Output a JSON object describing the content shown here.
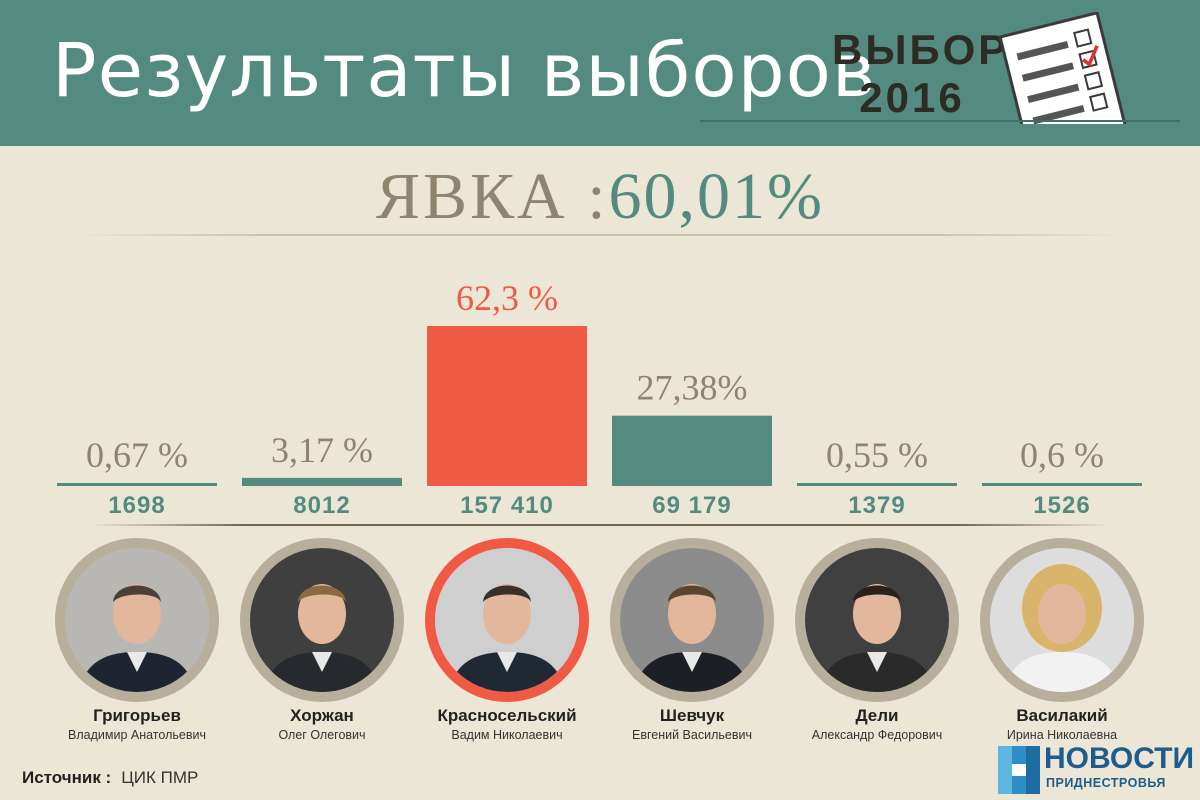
{
  "header": {
    "title": "Результаты выборов",
    "badge_line1": "ВЫБОРЫ",
    "badge_line2": "2016"
  },
  "turnout": {
    "label": "ЯВКА :",
    "value": "60,01%"
  },
  "chart_data": {
    "type": "bar",
    "categories": [
      "Григорьев",
      "Хоржан",
      "Красносельский",
      "Шевчук",
      "Дели",
      "Василакий"
    ],
    "values": [
      0.67,
      3.17,
      62.3,
      27.38,
      0.55,
      0.6
    ],
    "value_labels": [
      "0,67 %",
      "3,17 %",
      "62,3 %",
      "27,38%",
      "0,55 %",
      "0,6 %"
    ],
    "votes": [
      "1698",
      "8012",
      "157 410",
      "69 179",
      "1379",
      "1526"
    ],
    "colors": {
      "default_bar": "#538b80",
      "winner_bar": "#f05a44",
      "default_label": "#8f8470",
      "winner_label": "#f05a44",
      "votes_label": "#538b80"
    },
    "winner_index": 2,
    "ylim": [
      0,
      62.3
    ],
    "grid": false
  },
  "candidates": [
    {
      "surname": "Григорьев",
      "first": "Владимир Анатольевич",
      "icon": "portrait-icon"
    },
    {
      "surname": "Хоржан",
      "first": "Олег Олегович",
      "icon": "portrait-icon"
    },
    {
      "surname": "Красносельский",
      "first": "Вадим Николаевич",
      "icon": "portrait-icon"
    },
    {
      "surname": "Шевчук",
      "first": "Евгений Васильевич",
      "icon": "portrait-icon"
    },
    {
      "surname": "Дели",
      "first": "Александр Федорович",
      "icon": "portrait-icon"
    },
    {
      "surname": "Василакий",
      "first": "Ирина Николаевна",
      "icon": "portrait-icon"
    }
  ],
  "source": {
    "label": "Источник :",
    "value": "ЦИК ПМР"
  },
  "logo": {
    "word": "НОВОСТИ",
    "sub": "ПРИДНЕСТРОВЬЯ"
  }
}
